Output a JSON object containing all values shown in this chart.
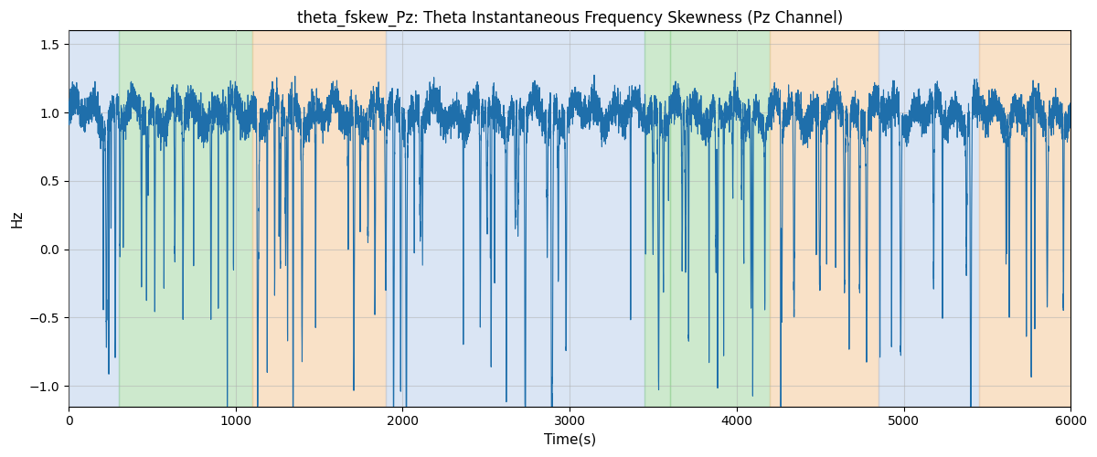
{
  "title": "theta_fskew_Pz: Theta Instantaneous Frequency Skewness (Pz Channel)",
  "xlabel": "Time(s)",
  "ylabel": "Hz",
  "xlim": [
    0,
    6000
  ],
  "ylim": [
    -1.15,
    1.6
  ],
  "line_color": "#1f6fab",
  "line_width": 0.8,
  "background_regions": [
    {
      "xmin": 0,
      "xmax": 300,
      "color": "#AEC6E8",
      "alpha": 0.45
    },
    {
      "xmin": 300,
      "xmax": 1100,
      "color": "#90D090",
      "alpha": 0.45
    },
    {
      "xmin": 1100,
      "xmax": 1900,
      "color": "#F5C99A",
      "alpha": 0.55
    },
    {
      "xmin": 1900,
      "xmax": 3450,
      "color": "#AEC6E8",
      "alpha": 0.45
    },
    {
      "xmin": 3450,
      "xmax": 3600,
      "color": "#90D090",
      "alpha": 0.45
    },
    {
      "xmin": 3600,
      "xmax": 4200,
      "color": "#90D090",
      "alpha": 0.45
    },
    {
      "xmin": 4200,
      "xmax": 4850,
      "color": "#F5C99A",
      "alpha": 0.55
    },
    {
      "xmin": 4850,
      "xmax": 5450,
      "color": "#AEC6E8",
      "alpha": 0.45
    },
    {
      "xmin": 5450,
      "xmax": 6000,
      "color": "#F5C99A",
      "alpha": 0.55
    }
  ],
  "title_fontsize": 12,
  "label_fontsize": 11,
  "tick_fontsize": 10,
  "grid_alpha": 0.5,
  "grid_color": "#b0b0b0"
}
